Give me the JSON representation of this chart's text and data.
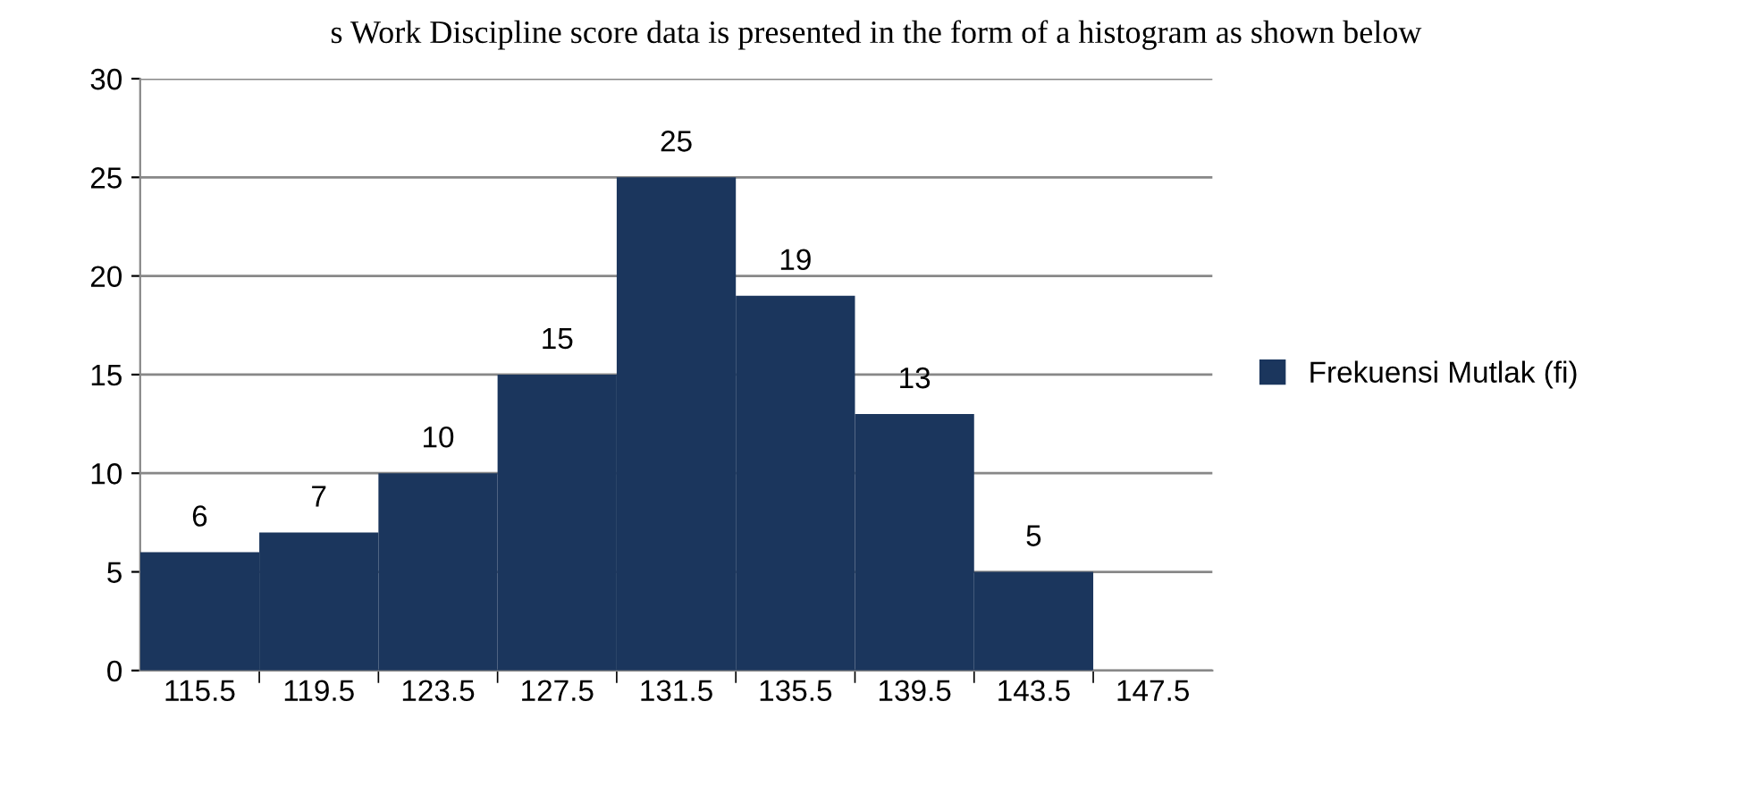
{
  "chart_data": {
    "type": "bar",
    "categories": [
      "115.5",
      "119.5",
      "123.5",
      "127.5",
      "131.5",
      "135.5",
      "139.5",
      "143.5",
      "147.5"
    ],
    "series": [
      {
        "name": "Frekuensi Mutlak (fi)",
        "color": "#1b365d",
        "values": [
          6,
          7,
          10,
          15,
          25,
          19,
          13,
          5,
          null
        ]
      }
    ],
    "ylim": [
      0,
      30
    ],
    "yticks": [
      0,
      5,
      10,
      15,
      20,
      25,
      30
    ],
    "grid": "y",
    "legend": "right",
    "data_labels": true,
    "annotations": [
      "s Work Discipline score data is presented in the form of a histogram as shown below"
    ]
  }
}
